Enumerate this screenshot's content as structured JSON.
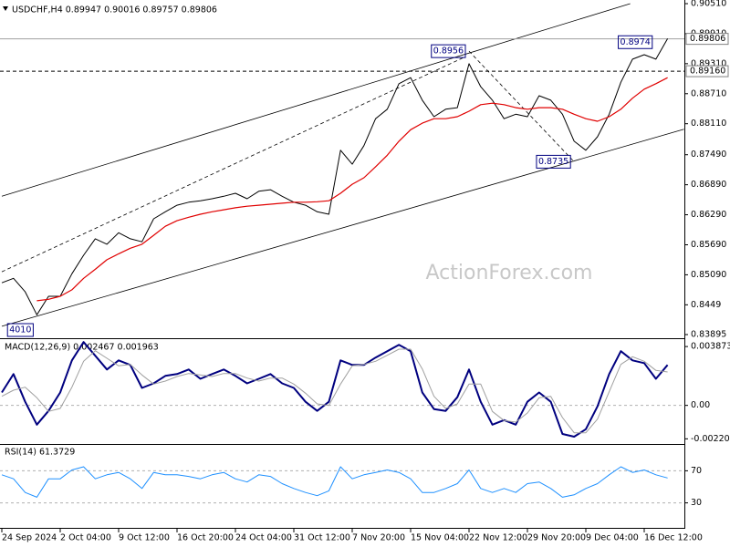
{
  "chart_data": [
    {
      "type": "line",
      "title": "USDCHF,H4 0.89947 0.90016 0.89757 0.89806",
      "watermark": "ActionForex.com",
      "categories": [
        "24 Sep 2024",
        null,
        null,
        null,
        null,
        "2 Oct 04:00",
        null,
        null,
        null,
        null,
        "9 Oct 12:00",
        null,
        null,
        null,
        null,
        "16 Oct 20:00",
        null,
        null,
        null,
        null,
        "24 Oct 04:00",
        null,
        null,
        null,
        null,
        "31 Oct 12:00",
        null,
        null,
        null,
        null,
        "7 Nov 20:00",
        null,
        null,
        null,
        null,
        "15 Nov 04:00",
        null,
        null,
        null,
        null,
        "22 Nov 12:00",
        null,
        null,
        null,
        null,
        "29 Nov 20:00",
        null,
        null,
        null,
        null,
        "9 Dec 04:00",
        null,
        null,
        null,
        null,
        "16 Dec 12:00",
        null,
        null
      ],
      "series": [
        {
          "color": "#000000",
          "width": 1,
          "values": [
            0.8493,
            0.8502,
            0.8475,
            0.8429,
            0.8466,
            0.8466,
            0.8511,
            0.8548,
            0.8581,
            0.857,
            0.8593,
            0.8581,
            0.8575,
            0.8621,
            0.8635,
            0.8648,
            0.8654,
            0.8657,
            0.8661,
            0.8666,
            0.8672,
            0.8661,
            0.8676,
            0.8679,
            0.8666,
            0.8654,
            0.8648,
            0.8635,
            0.863,
            0.8758,
            0.873,
            0.8767,
            0.8821,
            0.884,
            0.8891,
            0.8903,
            0.8858,
            0.8825,
            0.884,
            0.8843,
            0.8931,
            0.8885,
            0.8858,
            0.8821,
            0.883,
            0.8825,
            0.8867,
            0.8858,
            0.883,
            0.8776,
            0.8758,
            0.8785,
            0.883,
            0.8894,
            0.894,
            0.8949,
            0.894,
            0.8981
          ]
        },
        {
          "color": "#e00000",
          "width": 1.2,
          "values": [
            null,
            null,
            null,
            0.8457,
            0.846,
            0.8466,
            0.8479,
            0.8502,
            0.852,
            0.8539,
            0.8551,
            0.8562,
            0.857,
            0.8588,
            0.8606,
            0.8617,
            0.8624,
            0.863,
            0.8635,
            0.8639,
            0.8643,
            0.8646,
            0.8648,
            0.865,
            0.8652,
            0.8654,
            0.8654,
            0.8655,
            0.8657,
            0.8672,
            0.869,
            0.8703,
            0.8725,
            0.8748,
            0.8776,
            0.8799,
            0.8812,
            0.8821,
            0.8821,
            0.8825,
            0.8836,
            0.8849,
            0.8852,
            0.8849,
            0.8843,
            0.884,
            0.8843,
            0.8843,
            0.884,
            0.883,
            0.8821,
            0.8816,
            0.8825,
            0.884,
            0.8862,
            0.888,
            0.8891,
            0.8903
          ]
        }
      ],
      "ylim": [
        0.8384,
        0.90583
      ],
      "yticks": [
        {
          "value": 0.9051,
          "label": "0.90510"
        },
        {
          "value": 0.8991,
          "label": "0.89910"
        },
        {
          "value": 0.8931,
          "label": "0.89310"
        },
        {
          "value": 0.8871,
          "label": "0.88710"
        },
        {
          "value": 0.8811,
          "label": "0.88110"
        },
        {
          "value": 0.8749,
          "label": "0.87490"
        },
        {
          "value": 0.8689,
          "label": "0.86890"
        },
        {
          "value": 0.8629,
          "label": "0.86290"
        },
        {
          "value": 0.8569,
          "label": "0.85690"
        },
        {
          "value": 0.8509,
          "label": "0.85090"
        },
        0.8449,
        0.83895
      ],
      "price_lines": [
        {
          "value": 0.89806,
          "label": "0.89806",
          "style": "solid"
        },
        {
          "value": 0.8916,
          "label": "0.89160",
          "style": "dashed"
        }
      ],
      "trendlines": [
        {
          "x": [
            0,
            53.8
          ],
          "y": [
            0.8666,
            0.9051
          ],
          "style": "solid"
        },
        {
          "x": [
            0,
            58.4
          ],
          "y": [
            0.8406,
            0.88
          ],
          "style": "solid"
        },
        {
          "x": [
            0,
            39.7
          ],
          "y": [
            0.8515,
            0.8945
          ],
          "style": "dashed"
        },
        {
          "x": [
            40,
            49
          ],
          "y": [
            0.8956,
            0.8735
          ],
          "style": "dashed"
        }
      ],
      "annotations": [
        {
          "label": "0.8956",
          "x": 40,
          "y": 0.8956
        },
        {
          "label": "0.8974",
          "x": 56,
          "y": 0.8974
        },
        {
          "label": "0.8735",
          "x": 49,
          "y": 0.8735
        },
        {
          "label": "4010",
          "x": 3
        }
      ]
    },
    {
      "type": "line",
      "title": "MACD(12,26,9) 0.002467 0.001963",
      "series": [
        {
          "color": "#00007f",
          "width": 2,
          "values": [
            0.00085,
            0.00206,
            0.00024,
            -0.00127,
            -0.00036,
            0.00085,
            0.00296,
            0.00417,
            0.00327,
            0.00236,
            0.00296,
            0.00266,
            0.00115,
            0.00145,
            0.00194,
            0.00206,
            0.00236,
            0.00175,
            0.00206,
            0.00236,
            0.00194,
            0.00145,
            0.00175,
            0.00206,
            0.00145,
            0.00115,
            0.00024,
            -0.00036,
            0.00024,
            0.00296,
            0.00266,
            0.00266,
            0.00315,
            0.00357,
            0.00399,
            0.00357,
            0.00085,
            -0.00024,
            -0.00036,
            0.00054,
            0.00236,
            0.00024,
            -0.00127,
            -0.00097,
            -0.00127,
            0.00024,
            0.00085,
            0.00024,
            -0.00188,
            -0.00206,
            -0.00157,
            -6e-05,
            0.00206,
            0.00357,
            0.00296,
            0.00278,
            0.00175,
            0.00266
          ]
        },
        {
          "color": "#a0a0a0",
          "width": 1,
          "style": "solid",
          "values": [
            0.0006,
            0.001,
            0.0012,
            0.0005,
            -0.0004,
            -0.0002,
            0.0012,
            0.0029,
            0.0036,
            0.0031,
            0.0026,
            0.0027,
            0.002,
            0.0014,
            0.0016,
            0.0019,
            0.0021,
            0.002,
            0.0019,
            0.0021,
            0.0021,
            0.0018,
            0.0016,
            0.0018,
            0.0018,
            0.0014,
            0.0008,
            0.0001,
            0.0,
            0.0014,
            0.0026,
            0.0027,
            0.0029,
            0.0033,
            0.0037,
            0.0037,
            0.0024,
            0.0006,
            -0.0002,
            0.0001,
            0.0014,
            0.0014,
            -0.0004,
            -0.001,
            -0.0011,
            -0.0005,
            0.0005,
            0.0006,
            -0.0008,
            -0.0018,
            -0.0018,
            -0.0009,
            0.0009,
            0.0027,
            0.0032,
            0.0029,
            0.0023,
            0.0022
          ]
        }
      ],
      "ylim": [
        -0.00248,
        0.0043
      ],
      "yticks": [
        0.003873,
        {
          "value": 0,
          "label": "0.00"
        },
        -0.002201
      ],
      "levels": [
        0
      ]
    },
    {
      "type": "line",
      "title": "RSI(14) 61.3729",
      "series": [
        {
          "color": "#1e90ff",
          "width": 1,
          "values": [
            65,
            60,
            43,
            37,
            60,
            60,
            71,
            75,
            60,
            65,
            68,
            60,
            48,
            68,
            65,
            65,
            63,
            60,
            65,
            68,
            60,
            56,
            65,
            63,
            54,
            48,
            43,
            39,
            45,
            75,
            60,
            65,
            68,
            71,
            68,
            60,
            43,
            43,
            48,
            54,
            71,
            48,
            43,
            48,
            43,
            54,
            56,
            48,
            37,
            40,
            48,
            54,
            65,
            75,
            68,
            71,
            65,
            61
          ]
        }
      ],
      "ylim": [
        0,
        100
      ],
      "yticks": [
        70,
        30
      ],
      "levels": [
        70,
        30
      ]
    }
  ]
}
